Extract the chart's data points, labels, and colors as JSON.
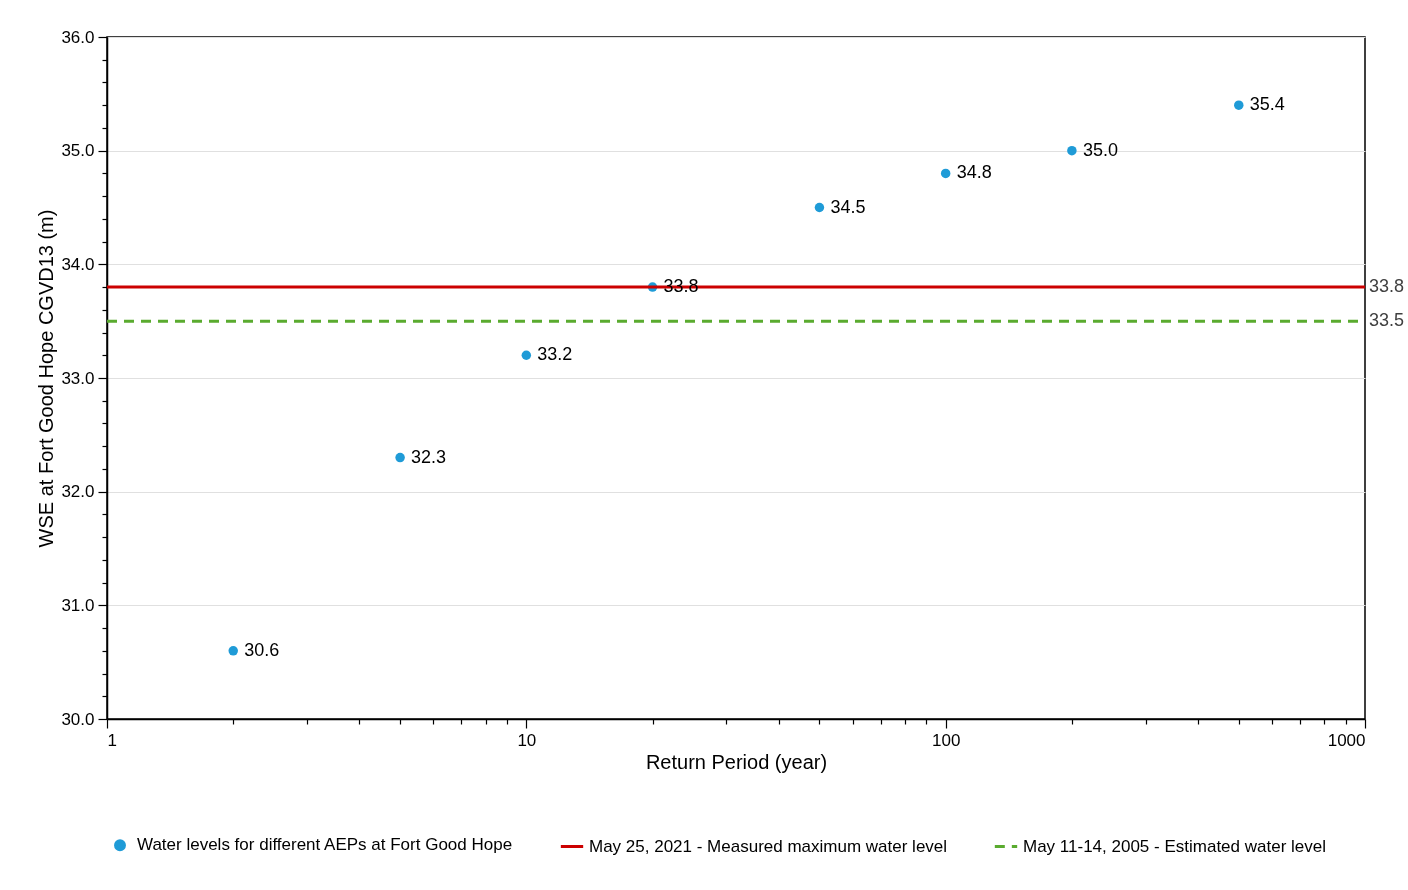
{
  "chart_data": {
    "type": "scatter",
    "xlabel": "Return Period (year)",
    "ylabel": "WSE at Fort Good Hope CGVD13 (m)",
    "log": "x",
    "grid": "y",
    "legend": "bottom",
    "marker": "circle",
    "xlim": [
      1,
      1000
    ],
    "ylim": [
      30,
      36
    ],
    "xticks": [
      1,
      {
        "value": 2,
        "label": null
      },
      {
        "value": 3,
        "label": null
      },
      {
        "value": 4,
        "label": null
      },
      {
        "value": 5,
        "label": null
      },
      {
        "value": 6,
        "label": null
      },
      {
        "value": 7,
        "label": null
      },
      {
        "value": 8,
        "label": null
      },
      {
        "value": 9,
        "label": null
      },
      10,
      {
        "value": 20,
        "label": null
      },
      {
        "value": 30,
        "label": null
      },
      {
        "value": 40,
        "label": null
      },
      {
        "value": 50,
        "label": null
      },
      {
        "value": 60,
        "label": null
      },
      {
        "value": 70,
        "label": null
      },
      {
        "value": 80,
        "label": null
      },
      {
        "value": 90,
        "label": null
      },
      100,
      {
        "value": 200,
        "label": null
      },
      {
        "value": 300,
        "label": null
      },
      {
        "value": 400,
        "label": null
      },
      {
        "value": 500,
        "label": null
      },
      {
        "value": 600,
        "label": null
      },
      {
        "value": 700,
        "label": null
      },
      {
        "value": 800,
        "label": null
      },
      {
        "value": 900,
        "label": null
      },
      1000
    ],
    "yticks": [
      {
        "value": 30,
        "label": "30.0"
      },
      {
        "value": 30.2,
        "label": null
      },
      {
        "value": 30.4,
        "label": null
      },
      {
        "value": 30.6,
        "label": null
      },
      {
        "value": 30.8,
        "label": null
      },
      {
        "value": 31,
        "label": "31.0"
      },
      {
        "value": 31.2,
        "label": null
      },
      {
        "value": 31.4,
        "label": null
      },
      {
        "value": 31.6,
        "label": null
      },
      {
        "value": 31.8,
        "label": null
      },
      {
        "value": 32,
        "label": "32.0"
      },
      {
        "value": 32.2,
        "label": null
      },
      {
        "value": 32.4,
        "label": null
      },
      {
        "value": 32.6,
        "label": null
      },
      {
        "value": 32.8,
        "label": null
      },
      {
        "value": 33,
        "label": "33.0"
      },
      {
        "value": 33.2,
        "label": null
      },
      {
        "value": 33.4,
        "label": null
      },
      {
        "value": 33.6,
        "label": null
      },
      {
        "value": 33.8,
        "label": null
      },
      {
        "value": 34,
        "label": "34.0"
      },
      {
        "value": 34.2,
        "label": null
      },
      {
        "value": 34.4,
        "label": null
      },
      {
        "value": 34.6,
        "label": null
      },
      {
        "value": 34.8,
        "label": null
      },
      {
        "value": 35,
        "label": "35.0"
      },
      {
        "value": 35.2,
        "label": null
      },
      {
        "value": 35.4,
        "label": null
      },
      {
        "value": 35.6,
        "label": null
      },
      {
        "value": 35.8,
        "label": null
      },
      {
        "value": 36,
        "label": "36.0"
      }
    ],
    "series": [
      {
        "name": "Water levels for different AEPs at Fort Good Hope",
        "type": "scatter",
        "color": "#1f9bd7",
        "x": [
          2,
          5,
          10,
          20,
          50,
          100,
          200,
          500
        ],
        "values": [
          30.6,
          32.3,
          33.2,
          33.8,
          34.5,
          34.8,
          35.0,
          35.4
        ],
        "value_labels": [
          "30.6",
          "32.3",
          "33.2",
          "33.8",
          "34.5",
          "34.8",
          "35.0",
          "35.4"
        ]
      },
      {
        "name": "May 25, 2021 - Measured maximum water level",
        "type": "line",
        "marker": "none",
        "color": "#cc0000",
        "line_style": "solid",
        "x": [
          1,
          1000
        ],
        "values": [
          33.8,
          33.8
        ],
        "value_labels": [
          null,
          "33.8"
        ]
      },
      {
        "name": "May 11-14, 2005 - Estimated water level",
        "type": "line",
        "marker": "none",
        "color": "#5aab2f",
        "line_style": "dashed",
        "x": [
          1,
          1000
        ],
        "values": [
          33.5,
          33.5
        ],
        "value_labels": [
          null,
          "33.5"
        ]
      }
    ]
  }
}
